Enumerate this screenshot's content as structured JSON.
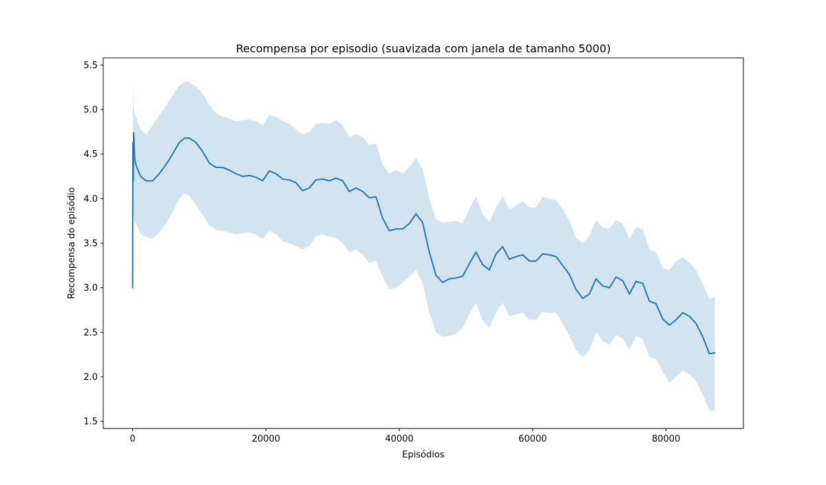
{
  "chart_data": {
    "type": "line",
    "title": "Recompensa por episodio (suavizada com janela de tamanho 5000)",
    "xlabel": "Episódios",
    "ylabel": "Recompensa do episódio",
    "xlim": [
      -4400,
      91600
    ],
    "ylim": [
      1.42,
      5.58
    ],
    "xticks": [
      0,
      20000,
      40000,
      60000,
      80000
    ],
    "yticks": [
      1.5,
      2.0,
      2.5,
      3.0,
      3.5,
      4.0,
      4.5,
      5.0,
      5.5
    ],
    "xtick_labels": [
      "0",
      "20000",
      "40000",
      "60000",
      "80000"
    ],
    "ytick_labels": [
      "1.5",
      "2.0",
      "2.5",
      "3.0",
      "3.5",
      "4.0",
      "4.5",
      "5.0",
      "5.5"
    ],
    "grid": false,
    "legend": "none",
    "colors": {
      "line": "#1f77b4",
      "band": "#1f77b4",
      "band_opacity": 0.2,
      "axes": "#000000"
    },
    "series": [
      {
        "x": [
          0,
          50,
          100,
          150,
          200,
          300,
          500,
          800,
          1200,
          2000,
          3000,
          4000,
          5000,
          6000,
          7000,
          7800,
          8500,
          9500,
          10500,
          11500,
          12500,
          13500,
          14500,
          15500,
          16500,
          17500,
          18500,
          19500,
          20500,
          21500,
          22500,
          23500,
          24500,
          25500,
          26500,
          27500,
          28500,
          29500,
          30500,
          31500,
          32500,
          33500,
          34500,
          35500,
          36500,
          37500,
          38500,
          39500,
          40500,
          41500,
          42500,
          43500,
          44500,
          45500,
          46500,
          47500,
          48500,
          49500,
          50500,
          51500,
          52500,
          53500,
          54500,
          55500,
          56500,
          57500,
          58500,
          59500,
          60500,
          61500,
          62500,
          63500,
          64500,
          65500,
          66500,
          67500,
          68500,
          69500,
          70500,
          71500,
          72500,
          73500,
          74500,
          75500,
          76500,
          77500,
          78500,
          79500,
          80500,
          81500,
          82500,
          83500,
          84500,
          85500,
          86500,
          87300
        ],
        "y": [
          3.0,
          4.63,
          4.2,
          4.74,
          4.7,
          4.45,
          4.38,
          4.32,
          4.25,
          4.2,
          4.2,
          4.28,
          4.38,
          4.5,
          4.63,
          4.68,
          4.68,
          4.63,
          4.53,
          4.4,
          4.35,
          4.35,
          4.32,
          4.28,
          4.25,
          4.26,
          4.24,
          4.2,
          4.31,
          4.28,
          4.22,
          4.21,
          4.18,
          4.09,
          4.12,
          4.21,
          4.22,
          4.2,
          4.23,
          4.2,
          4.08,
          4.12,
          4.08,
          4.01,
          4.02,
          3.78,
          3.64,
          3.66,
          3.66,
          3.72,
          3.83,
          3.73,
          3.4,
          3.14,
          3.06,
          3.1,
          3.11,
          3.13,
          3.27,
          3.4,
          3.26,
          3.2,
          3.38,
          3.46,
          3.32,
          3.35,
          3.37,
          3.3,
          3.3,
          3.38,
          3.37,
          3.35,
          3.25,
          3.15,
          2.98,
          2.88,
          2.93,
          3.1,
          3.02,
          3.0,
          3.12,
          3.08,
          2.93,
          3.07,
          3.05,
          2.85,
          2.82,
          2.65,
          2.58,
          2.64,
          2.72,
          2.68,
          2.6,
          2.45,
          2.26,
          2.27
        ],
        "lower": [
          3.0,
          3.95,
          3.75,
          3.8,
          3.78,
          3.74,
          3.73,
          3.68,
          3.6,
          3.57,
          3.55,
          3.62,
          3.72,
          3.85,
          4.0,
          4.06,
          4.03,
          3.93,
          3.82,
          3.7,
          3.65,
          3.64,
          3.62,
          3.6,
          3.61,
          3.62,
          3.6,
          3.55,
          3.64,
          3.6,
          3.52,
          3.5,
          3.47,
          3.43,
          3.47,
          3.58,
          3.6,
          3.57,
          3.56,
          3.5,
          3.4,
          3.43,
          3.37,
          3.28,
          3.3,
          3.12,
          2.98,
          3.0,
          3.06,
          3.12,
          3.2,
          3.05,
          2.72,
          2.5,
          2.45,
          2.46,
          2.48,
          2.55,
          2.7,
          2.83,
          2.63,
          2.55,
          2.72,
          2.83,
          2.68,
          2.7,
          2.72,
          2.64,
          2.64,
          2.73,
          2.72,
          2.72,
          2.6,
          2.46,
          2.3,
          2.22,
          2.3,
          2.5,
          2.4,
          2.36,
          2.47,
          2.43,
          2.3,
          2.46,
          2.42,
          2.22,
          2.2,
          2.06,
          1.93,
          2.0,
          2.07,
          2.03,
          1.95,
          1.8,
          1.62,
          1.62
        ],
        "upper": [
          3.0,
          5.31,
          5.1,
          5.05,
          5.0,
          4.96,
          4.92,
          4.85,
          4.78,
          4.72,
          4.82,
          4.94,
          5.04,
          5.16,
          5.27,
          5.31,
          5.31,
          5.26,
          5.18,
          5.05,
          4.96,
          4.92,
          4.9,
          4.87,
          4.88,
          4.89,
          4.87,
          4.82,
          4.94,
          4.92,
          4.87,
          4.84,
          4.78,
          4.72,
          4.75,
          4.84,
          4.85,
          4.84,
          4.88,
          4.82,
          4.69,
          4.73,
          4.69,
          4.6,
          4.62,
          4.38,
          4.28,
          4.32,
          4.28,
          4.35,
          4.46,
          4.33,
          4.0,
          3.77,
          3.73,
          3.74,
          3.75,
          3.72,
          3.88,
          4.02,
          3.83,
          3.74,
          3.9,
          4.03,
          3.88,
          3.92,
          3.97,
          3.9,
          3.9,
          4.02,
          4.0,
          3.98,
          3.88,
          3.75,
          3.56,
          3.5,
          3.58,
          3.76,
          3.68,
          3.66,
          3.76,
          3.72,
          3.55,
          3.68,
          3.66,
          3.43,
          3.4,
          3.22,
          3.2,
          3.3,
          3.34,
          3.28,
          3.2,
          3.05,
          2.87,
          2.9
        ]
      }
    ]
  }
}
